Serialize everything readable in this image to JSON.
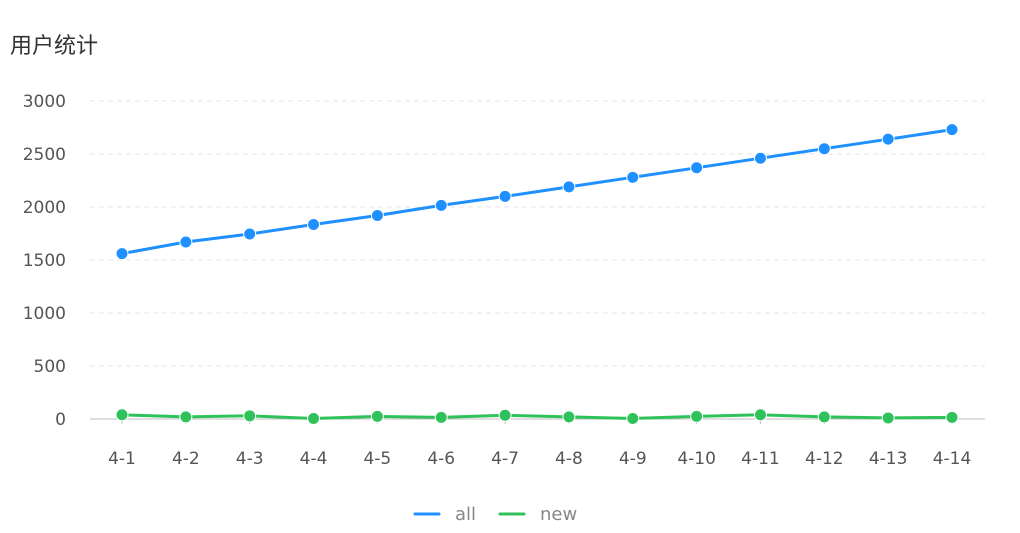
{
  "chart_data": {
    "type": "line",
    "title": "用户统计",
    "categories": [
      "4-1",
      "4-2",
      "4-3",
      "4-4",
      "4-5",
      "4-6",
      "4-7",
      "4-8",
      "4-9",
      "4-10",
      "4-11",
      "4-12",
      "4-13",
      "4-14"
    ],
    "series": [
      {
        "name": "all",
        "color": "#1e90ff",
        "values": [
          1560,
          1670,
          1745,
          1835,
          1920,
          2015,
          2100,
          2190,
          2280,
          2370,
          2460,
          2550,
          2640,
          2730
        ]
      },
      {
        "name": "new",
        "color": "#2fc25b",
        "values": [
          40,
          20,
          30,
          5,
          25,
          15,
          35,
          20,
          5,
          25,
          40,
          20,
          10,
          15
        ]
      }
    ],
    "ylim": [
      0,
      3000
    ],
    "yticks": [
      0,
      500,
      1000,
      1500,
      2000,
      2500,
      3000
    ],
    "grid": true,
    "legend_position": "bottom-center",
    "xlabel": "",
    "ylabel": ""
  }
}
